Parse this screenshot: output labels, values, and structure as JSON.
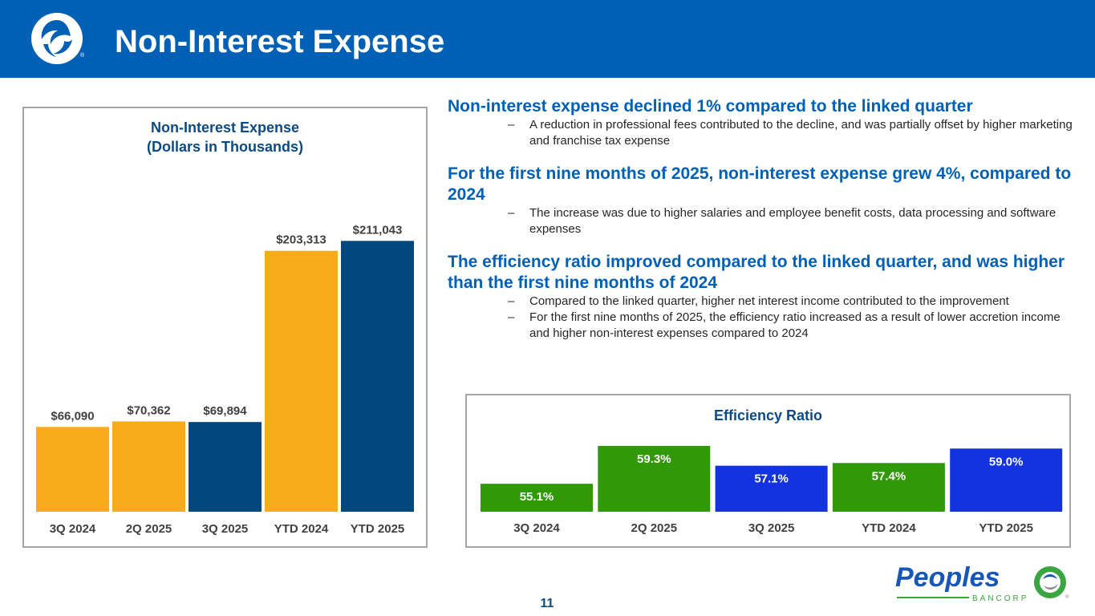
{
  "header": {
    "title": "Non-Interest Expense"
  },
  "left_chart": {
    "title_line1": "Non-Interest Expense",
    "title_line2": "(Dollars in Thousands)"
  },
  "right_chart": {
    "title": "Efficiency Ratio"
  },
  "bullets": [
    {
      "heading": "Non-interest expense declined 1% compared to the linked quarter",
      "subs": [
        "A reduction in professional fees contributed to the decline, and was partially offset by higher marketing and franchise tax expense"
      ]
    },
    {
      "heading": "For the first nine months of 2025, non-interest expense grew 4%, compared to 2024",
      "subs": [
        "The increase was due to higher salaries and employee benefit costs, data processing and software expenses"
      ]
    },
    {
      "heading": "The efficiency ratio improved compared to the linked quarter, and was higher than the first nine months of 2024",
      "subs": [
        "Compared to the linked quarter, higher net interest income contributed to the improvement",
        "For the first nine months of 2025, the efficiency ratio increased as a result of lower accretion income and higher non-interest expenses compared to 2024"
      ]
    }
  ],
  "page_number": "11",
  "brand": {
    "name": "Peoples",
    "tagline": "BANCORP"
  },
  "colors": {
    "header": "#0060b6",
    "gold": "#f8ac1b",
    "navy": "#03477f",
    "green": "#2f9a05",
    "blue": "#1333e1"
  },
  "chart_data": [
    {
      "type": "bar",
      "title": "Non-Interest Expense (Dollars in Thousands)",
      "categories": [
        "3Q 2024",
        "2Q 2025",
        "3Q 2025",
        "YTD 2024",
        "YTD 2025"
      ],
      "values": [
        66090,
        70362,
        69894,
        203313,
        211043
      ],
      "labels": [
        "$66,090",
        "$70,362",
        "$69,894",
        "$203,313",
        "$211,043"
      ],
      "bar_colors": [
        "#f8ac1b",
        "#f8ac1b",
        "#03477f",
        "#f8ac1b",
        "#03477f"
      ],
      "label_color": "#404040",
      "ylim": [
        0,
        225000
      ],
      "grid": false,
      "note": "Quarterly bars and year-to-date bars use separate scales in the original"
    },
    {
      "type": "bar",
      "title": "Efficiency Ratio",
      "categories": [
        "3Q 2024",
        "2Q 2025",
        "3Q 2025",
        "YTD 2024",
        "YTD 2025"
      ],
      "values": [
        55.1,
        59.3,
        57.1,
        57.4,
        59.0
      ],
      "labels": [
        "55.1%",
        "59.3%",
        "57.1%",
        "57.4%",
        "59.0%"
      ],
      "bar_colors": [
        "#2f9a05",
        "#2f9a05",
        "#1333e1",
        "#2f9a05",
        "#1333e1"
      ],
      "label_color": "#ffffff",
      "ylim": [
        52,
        60
      ],
      "grid": false
    }
  ]
}
